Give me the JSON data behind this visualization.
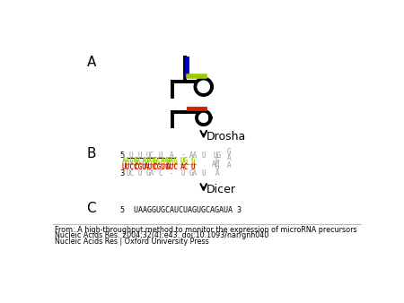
{
  "label_A": "A",
  "label_B": "B",
  "label_C": "C",
  "drosha_label": "Drosha",
  "dicer_label": "Dicer",
  "mature_seq": "5  UAAGGUGCAUCUAGUGCAGAUA 3",
  "footer_line1": "From: A high-throughput method to monitor the expression of microRNA precursors",
  "footer_line2": "Nucleic Acids Res. 2004;32(4):e43. doi:10.1093/nar/gnh040",
  "footer_line3": "Nucleic Acids Res | Oxford University Press",
  "bg_color": "#ffffff",
  "black": "#000000",
  "green": "#99cc00",
  "red": "#cc2200",
  "blue": "#0000bb",
  "gray": "#999999",
  "lw": 2.8
}
